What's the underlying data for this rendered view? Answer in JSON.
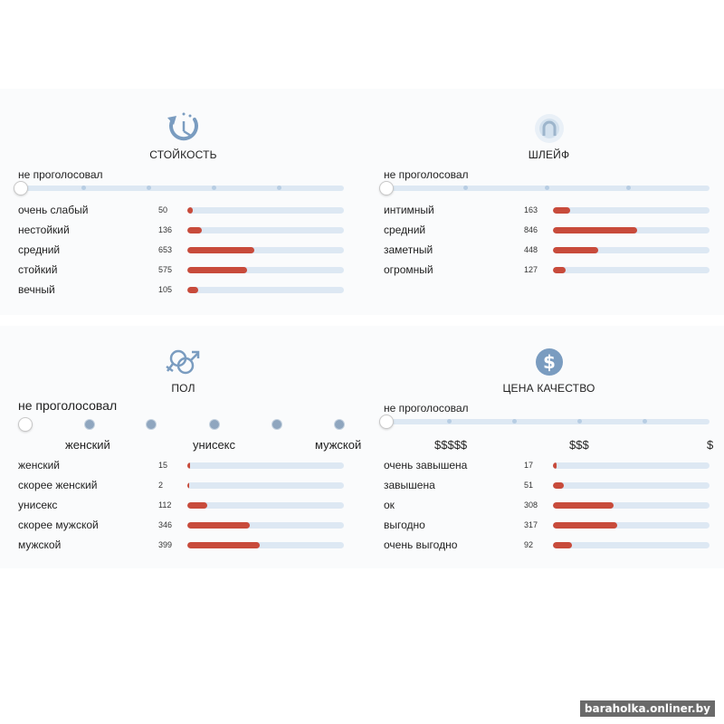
{
  "durability": {
    "title": "СТОЙКОСТЬ",
    "vote_label": "не проголосовал",
    "rows": [
      {
        "label": "очень слабый",
        "count": "50",
        "pct": 3.5
      },
      {
        "label": "нестойкий",
        "count": "136",
        "pct": 9
      },
      {
        "label": "средний",
        "count": "653",
        "pct": 43
      },
      {
        "label": "стойкий",
        "count": "575",
        "pct": 38
      },
      {
        "label": "вечный",
        "count": "105",
        "pct": 7
      }
    ]
  },
  "trail": {
    "title": "ШЛЕЙФ",
    "vote_label": "не проголосовал",
    "rows": [
      {
        "label": "интимный",
        "count": "163",
        "pct": 11
      },
      {
        "label": "средний",
        "count": "846",
        "pct": 54
      },
      {
        "label": "заметный",
        "count": "448",
        "pct": 29
      },
      {
        "label": "огромный",
        "count": "127",
        "pct": 8
      }
    ]
  },
  "gender": {
    "title": "ПОЛ",
    "vote_label": "не проголосовал",
    "scale": {
      "left": "женский",
      "middle": "унисекс",
      "right": "мужской"
    },
    "rows": [
      {
        "label": "женский",
        "count": "15",
        "pct": 2
      },
      {
        "label": "скорее женский",
        "count": "2",
        "pct": 1
      },
      {
        "label": "унисекс",
        "count": "112",
        "pct": 13
      },
      {
        "label": "скорее мужской",
        "count": "346",
        "pct": 40
      },
      {
        "label": "мужской",
        "count": "399",
        "pct": 46
      }
    ]
  },
  "value": {
    "title": "ЦЕНА КАЧЕСТВО",
    "vote_label": "не проголосовал",
    "scale": {
      "left": "$$$$$",
      "middle": "$$$",
      "right": "$"
    },
    "rows": [
      {
        "label": "очень завышена",
        "count": "17",
        "pct": 2.5
      },
      {
        "label": "завышена",
        "count": "51",
        "pct": 7
      },
      {
        "label": "ок",
        "count": "308",
        "pct": 39
      },
      {
        "label": "выгодно",
        "count": "317",
        "pct": 41
      },
      {
        "label": "очень выгодно",
        "count": "92",
        "pct": 12
      }
    ]
  },
  "watermark": "baraholka.onliner.by",
  "colors": {
    "fill": "#c84b3b",
    "track": "#dde8f3",
    "icon": "#7a9cc0"
  }
}
